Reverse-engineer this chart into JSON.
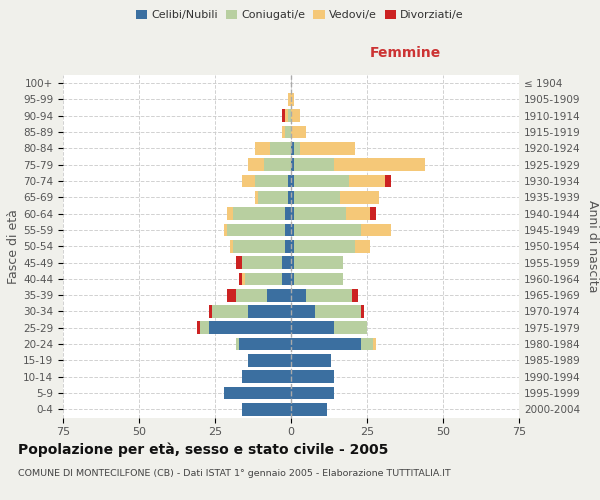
{
  "age_groups": [
    "0-4",
    "5-9",
    "10-14",
    "15-19",
    "20-24",
    "25-29",
    "30-34",
    "35-39",
    "40-44",
    "45-49",
    "50-54",
    "55-59",
    "60-64",
    "65-69",
    "70-74",
    "75-79",
    "80-84",
    "85-89",
    "90-94",
    "95-99",
    "100+"
  ],
  "birth_years": [
    "2000-2004",
    "1995-1999",
    "1990-1994",
    "1985-1989",
    "1980-1984",
    "1975-1979",
    "1970-1974",
    "1965-1969",
    "1960-1964",
    "1955-1959",
    "1950-1954",
    "1945-1949",
    "1940-1944",
    "1935-1939",
    "1930-1934",
    "1925-1929",
    "1920-1924",
    "1915-1919",
    "1910-1914",
    "1905-1909",
    "≤ 1904"
  ],
  "male": {
    "celibi": [
      16,
      22,
      16,
      14,
      17,
      27,
      14,
      8,
      3,
      3,
      2,
      2,
      2,
      1,
      1,
      0,
      0,
      0,
      0,
      0,
      0
    ],
    "coniugati": [
      0,
      0,
      0,
      0,
      1,
      3,
      12,
      10,
      12,
      13,
      17,
      19,
      17,
      10,
      11,
      9,
      7,
      2,
      1,
      0,
      0
    ],
    "vedovi": [
      0,
      0,
      0,
      0,
      0,
      0,
      0,
      0,
      1,
      0,
      1,
      1,
      2,
      1,
      4,
      5,
      5,
      1,
      1,
      1,
      0
    ],
    "divorziati": [
      0,
      0,
      0,
      0,
      0,
      1,
      1,
      3,
      1,
      2,
      0,
      0,
      0,
      0,
      0,
      0,
      0,
      0,
      1,
      0,
      0
    ]
  },
  "female": {
    "nubili": [
      12,
      14,
      14,
      13,
      23,
      14,
      8,
      5,
      1,
      1,
      1,
      1,
      1,
      1,
      1,
      1,
      1,
      0,
      0,
      0,
      0
    ],
    "coniugate": [
      0,
      0,
      0,
      0,
      4,
      11,
      15,
      15,
      16,
      16,
      20,
      22,
      17,
      15,
      18,
      13,
      2,
      0,
      0,
      0,
      0
    ],
    "vedove": [
      0,
      0,
      0,
      0,
      1,
      0,
      0,
      0,
      0,
      0,
      5,
      10,
      8,
      13,
      12,
      30,
      18,
      5,
      3,
      1,
      0
    ],
    "divorziate": [
      0,
      0,
      0,
      0,
      0,
      0,
      1,
      2,
      0,
      0,
      0,
      0,
      2,
      0,
      2,
      0,
      0,
      0,
      0,
      0,
      0
    ]
  },
  "colors": {
    "celibi": "#3b6fa0",
    "coniugati": "#b8cfa0",
    "vedovi": "#f5c878",
    "divorziati": "#cc2222"
  },
  "title": "Popolazione per età, sesso e stato civile - 2005",
  "subtitle": "COMUNE DI MONTECILFONE (CB) - Dati ISTAT 1° gennaio 2005 - Elaborazione TUTTITALIA.IT",
  "xlabel_right": "Femmine",
  "ylabel_left": "Fasce di età",
  "ylabel_right": "Anni di nascita",
  "xlim": 75,
  "background_color": "#f0f0eb",
  "plot_bg": "#ffffff"
}
